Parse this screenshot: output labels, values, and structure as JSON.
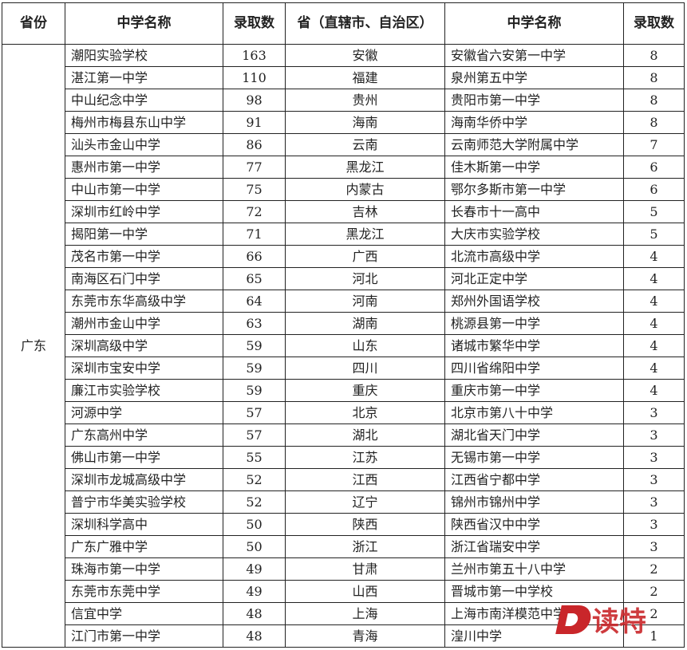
{
  "headers": [
    "省份",
    "中学名称",
    "录取数",
    "省（直辖市、自治区）",
    "中学名称",
    "录取数"
  ],
  "left_province": "广东",
  "rows": [
    [
      "潮阳实验学校",
      "163",
      "安徽",
      "安徽省六安第一中学",
      "8"
    ],
    [
      "湛江第一中学",
      "110",
      "福建",
      "泉州第五中学",
      "8"
    ],
    [
      "中山纪念中学",
      "98",
      "贵州",
      "贵阳市第一中学",
      "8"
    ],
    [
      "梅州市梅县东山中学",
      "91",
      "海南",
      "海南华侨中学",
      "8"
    ],
    [
      "汕头市金山中学",
      "86",
      "云南",
      "云南师范大学附属中学",
      "7"
    ],
    [
      "惠州市第一中学",
      "77",
      "黑龙江",
      "佳木斯第一中学",
      "6"
    ],
    [
      "中山市第一中学",
      "75",
      "内蒙古",
      "鄂尔多斯市第一中学",
      "6"
    ],
    [
      "深圳市红岭中学",
      "72",
      "吉林",
      "长春市十一高中",
      "5"
    ],
    [
      "揭阳第一中学",
      "71",
      "黑龙江",
      "大庆市实验学校",
      "5"
    ],
    [
      "茂名市第一中学",
      "66",
      "广西",
      "北流市高级中学",
      "4"
    ],
    [
      "南海区石门中学",
      "65",
      "河北",
      "河北正定中学",
      "4"
    ],
    [
      "东莞市东华高级中学",
      "64",
      "河南",
      "郑州外国语学校",
      "4"
    ],
    [
      "潮州市金山中学",
      "63",
      "湖南",
      "桃源县第一中学",
      "4"
    ],
    [
      "深圳高级中学",
      "59",
      "山东",
      "诸城市繁华中学",
      "4"
    ],
    [
      "深圳市宝安中学",
      "59",
      "四川",
      "四川省绵阳中学",
      "4"
    ],
    [
      "廉江市实验学校",
      "59",
      "重庆",
      "重庆市第一中学",
      "4"
    ],
    [
      "河源中学",
      "57",
      "北京",
      "北京市第八十中学",
      "3"
    ],
    [
      "广东高州中学",
      "57",
      "湖北",
      "湖北省天门中学",
      "3"
    ],
    [
      "佛山市第一中学",
      "55",
      "江苏",
      "无锡市第一中学",
      "3"
    ],
    [
      "深圳市龙城高级中学",
      "52",
      "江西",
      "江西省宁都中学",
      "3"
    ],
    [
      "普宁市华美实验学校",
      "52",
      "辽宁",
      "锦州市锦州中学",
      "3"
    ],
    [
      "深圳科学高中",
      "50",
      "陕西",
      "陕西省汉中中学",
      "3"
    ],
    [
      "广东广雅中学",
      "50",
      "浙江",
      "浙江省瑞安中学",
      "3"
    ],
    [
      "珠海市第一中学",
      "49",
      "甘肃",
      "兰州市第五十八中学",
      "2"
    ],
    [
      "东莞市东莞中学",
      "49",
      "山西",
      "晋城市第一中学校",
      "2"
    ],
    [
      "信宜中学",
      "48",
      "上海",
      "上海市南洋模范中学",
      "2"
    ],
    [
      "江门市第一中学",
      "48",
      "青海",
      "湟川中学",
      "1"
    ]
  ],
  "watermark": "D读特",
  "watermark_color": "#c9262a"
}
